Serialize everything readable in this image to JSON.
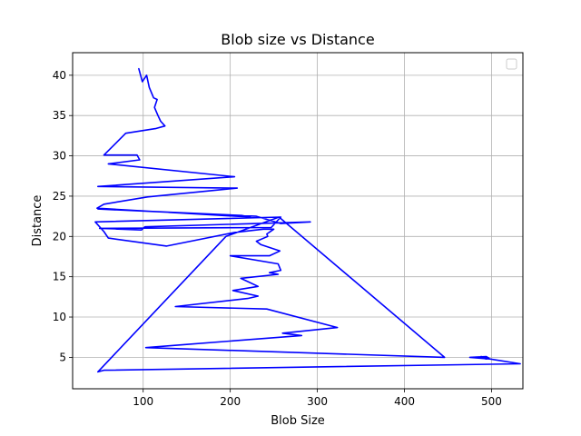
{
  "chart_data": {
    "type": "line",
    "title": "Blob size vs Distance",
    "xlabel": "Blob Size",
    "ylabel": "Distance",
    "xlim": [
      19,
      536
    ],
    "ylim": [
      1.1,
      42.8
    ],
    "xticks": [
      100,
      200,
      300,
      400,
      500
    ],
    "yticks": [
      5,
      10,
      15,
      20,
      25,
      30,
      35,
      40
    ],
    "grid": true,
    "legend": {
      "placement": "top-right",
      "entries": []
    },
    "series": [
      {
        "color": "#0000ff",
        "points": [
          [
            95,
            40.8
          ],
          [
            99,
            39.2
          ],
          [
            104,
            40.0
          ],
          [
            107,
            38.5
          ],
          [
            112,
            37.2
          ],
          [
            116,
            37.0
          ],
          [
            113,
            36.0
          ],
          [
            117,
            35.0
          ],
          [
            120,
            34.3
          ],
          [
            125,
            33.7
          ],
          [
            115,
            33.4
          ],
          [
            80,
            32.8
          ],
          [
            55,
            30.1
          ],
          [
            93,
            30.1
          ],
          [
            96,
            29.5
          ],
          [
            60,
            29.0
          ],
          [
            205,
            27.4
          ],
          [
            48,
            26.2
          ],
          [
            208,
            26.0
          ],
          [
            105,
            24.9
          ],
          [
            55,
            24.0
          ],
          [
            47,
            23.5
          ],
          [
            223,
            22.4
          ],
          [
            213,
            22.6
          ],
          [
            48,
            23.4
          ],
          [
            230,
            22.5
          ],
          [
            258,
            21.6
          ],
          [
            292,
            21.8
          ],
          [
            102,
            21.2
          ],
          [
            98,
            20.8
          ],
          [
            50,
            21.0
          ],
          [
            247,
            21.1
          ],
          [
            258,
            22.4
          ],
          [
            45,
            21.8
          ],
          [
            55,
            20.6
          ],
          [
            60,
            19.8
          ],
          [
            127,
            18.8
          ],
          [
            205,
            20.5
          ],
          [
            238,
            20.9
          ],
          [
            250,
            20.9
          ],
          [
            242,
            20.3
          ],
          [
            243,
            20.0
          ],
          [
            230,
            19.4
          ],
          [
            235,
            19.0
          ],
          [
            257,
            18.2
          ],
          [
            245,
            17.6
          ],
          [
            200,
            17.6
          ],
          [
            255,
            16.6
          ],
          [
            258,
            15.8
          ],
          [
            245,
            15.5
          ],
          [
            255,
            15.3
          ],
          [
            212,
            14.8
          ],
          [
            232,
            13.8
          ],
          [
            203,
            13.3
          ],
          [
            232,
            12.6
          ],
          [
            220,
            12.3
          ],
          [
            137,
            11.3
          ],
          [
            242,
            11.0
          ],
          [
            323,
            8.7
          ],
          [
            260,
            8.0
          ],
          [
            282,
            7.7
          ],
          [
            150,
            6.6
          ],
          [
            103,
            6.2
          ],
          [
            446,
            5.0
          ],
          [
            256,
            22.4
          ],
          [
            195,
            20.0
          ],
          [
            48,
            3.2
          ],
          [
            55,
            3.4
          ],
          [
            533,
            4.2
          ],
          [
            498,
            4.8
          ],
          [
            475,
            5.0
          ],
          [
            494,
            5.1
          ],
          [
            497,
            4.9
          ],
          [
            488,
            5.1
          ],
          [
            494,
            4.8
          ],
          [
            485,
            5.0
          ]
        ]
      }
    ]
  }
}
